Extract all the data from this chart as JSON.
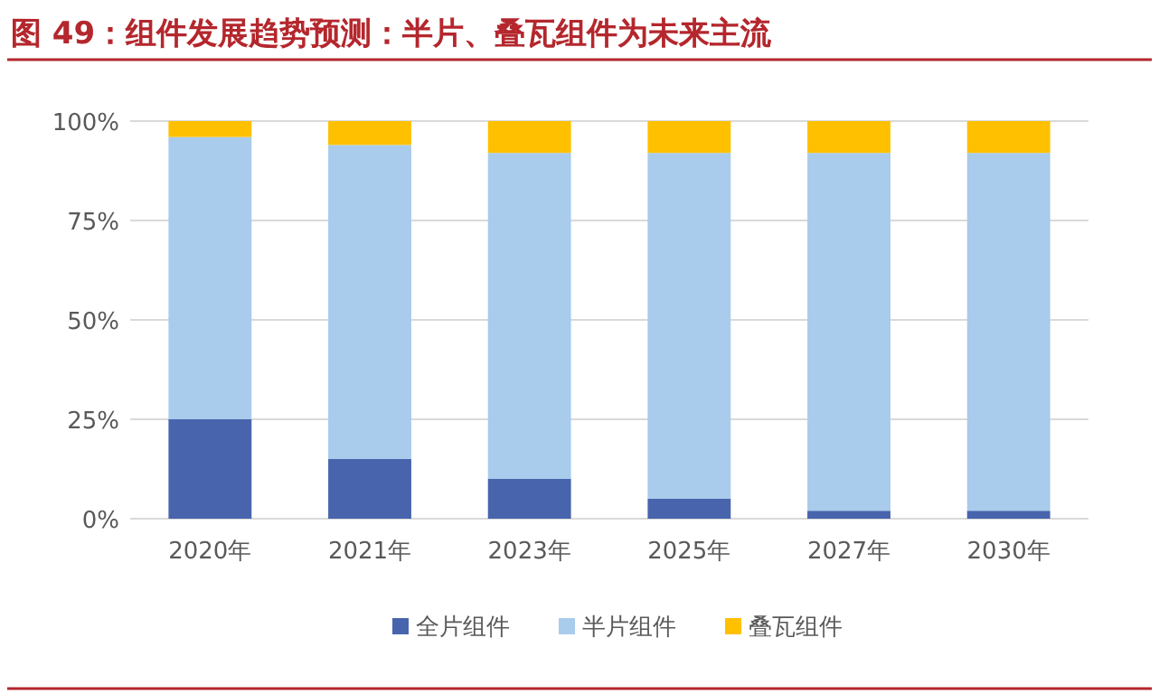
{
  "chart_data": {
    "type": "bar",
    "title": "图 49：组件发展趋势预测：半片、叠瓦组件为未来主流",
    "stacked": true,
    "categories": [
      "2020年",
      "2021年",
      "2023年",
      "2025年",
      "2027年",
      "2030年"
    ],
    "series": [
      {
        "name": "全片组件",
        "color": "#4864ad",
        "values": [
          25,
          15,
          10,
          5,
          2,
          2
        ]
      },
      {
        "name": "半片组件",
        "color": "#a9cbec",
        "values": [
          71,
          79,
          82,
          87,
          90,
          90
        ]
      },
      {
        "name": "叠瓦组件",
        "color": "#ffc000",
        "values": [
          4,
          6,
          8,
          8,
          8,
          8
        ]
      }
    ],
    "ylim": [
      0,
      100
    ],
    "yticks": [
      {
        "value": 0,
        "label": "0%"
      },
      {
        "value": 25,
        "label": "25%"
      },
      {
        "value": 50,
        "label": "50%"
      },
      {
        "value": 75,
        "label": "75%"
      },
      {
        "value": 100,
        "label": "100%"
      }
    ],
    "grid": "y",
    "legend": "bottom"
  }
}
